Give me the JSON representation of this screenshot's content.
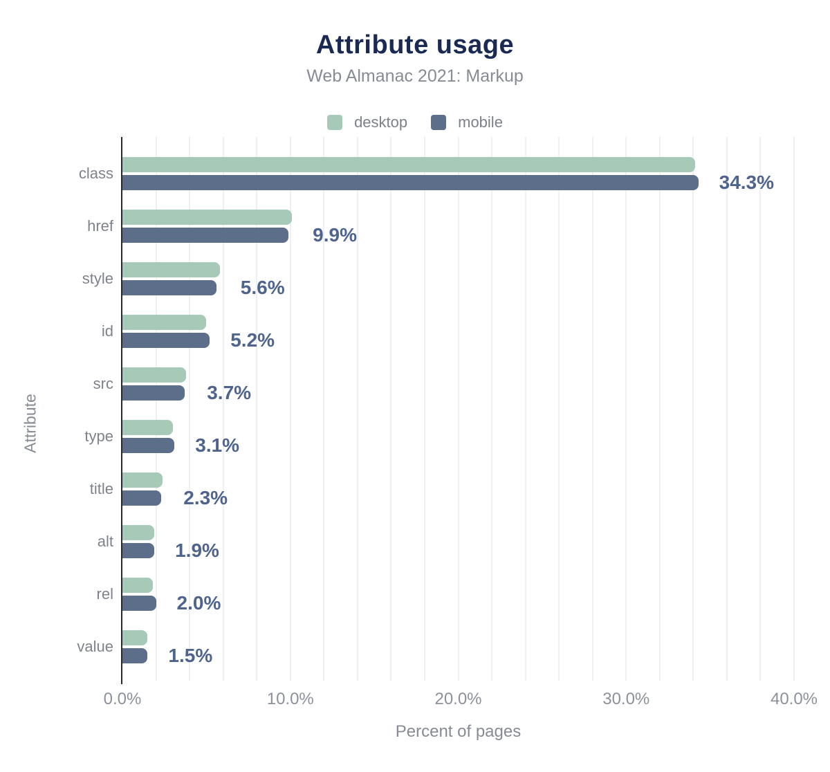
{
  "header": {
    "title": "Attribute usage",
    "subtitle": "Web Almanac 2021: Markup"
  },
  "legend": {
    "items": [
      {
        "label": "desktop",
        "color": "#a7c9b8"
      },
      {
        "label": "mobile",
        "color": "#5d6e8b"
      }
    ]
  },
  "chart_data": {
    "type": "bar",
    "orientation": "horizontal",
    "title": "Attribute usage",
    "subtitle": "Web Almanac 2021: Markup",
    "xlabel": "Percent of pages",
    "ylabel": "Attribute",
    "xlim": [
      0,
      40
    ],
    "grid_minor_step_pct": 2,
    "legend_position": "top",
    "categories": [
      "class",
      "href",
      "style",
      "id",
      "src",
      "type",
      "title",
      "alt",
      "rel",
      "value"
    ],
    "series": [
      {
        "name": "desktop",
        "color": "#a7c9b8",
        "values": [
          34.1,
          10.1,
          5.8,
          5.0,
          3.8,
          3.0,
          2.4,
          1.9,
          1.8,
          1.5
        ]
      },
      {
        "name": "mobile",
        "color": "#5d6e8b",
        "values": [
          34.3,
          9.9,
          5.6,
          5.2,
          3.7,
          3.1,
          2.3,
          1.9,
          2.0,
          1.5
        ]
      }
    ],
    "annotations": [
      "34.3%",
      "9.9%",
      "5.6%",
      "5.2%",
      "3.7%",
      "3.1%",
      "2.3%",
      "1.9%",
      "2.0%",
      "1.5%"
    ],
    "x_ticks": [
      {
        "label": "0.0%",
        "pct": 0
      },
      {
        "label": "10.0%",
        "pct": 10
      },
      {
        "label": "20.0%",
        "pct": 20
      },
      {
        "label": "30.0%",
        "pct": 30
      },
      {
        "label": "40.0%",
        "pct": 40
      }
    ],
    "colors": {
      "title": "#1a2a52",
      "subtitle": "#868b94",
      "legend_text": "#7b808a",
      "category_label": "#7e828b",
      "tick_label": "#8c919b",
      "axis_title": "#868b94",
      "annotation": "#4e648c",
      "gridline": "#f0f0f2",
      "axis_line": "#26282c"
    }
  }
}
